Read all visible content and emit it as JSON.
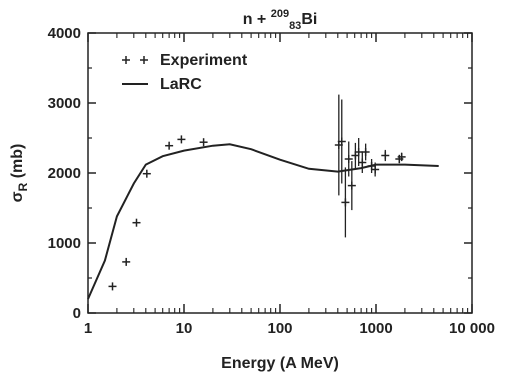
{
  "chart_data": {
    "type": "scatter",
    "title": {
      "prefix": "n + ",
      "mass_number": "209",
      "atomic_number": "83",
      "element": "Bi"
    },
    "xlabel": "Energy (A MeV)",
    "ylabel": {
      "symbol": "σ",
      "subscript": "R",
      "unit": " (mb)"
    },
    "x_scale": "log",
    "xlim": [
      1,
      10000
    ],
    "ylim": [
      0,
      4000
    ],
    "x_ticks": [
      {
        "value": 1,
        "label": "1"
      },
      {
        "value": 10,
        "label": "10"
      },
      {
        "value": 100,
        "label": "100"
      },
      {
        "value": 1000,
        "label": "1000"
      },
      {
        "value": 10000,
        "label": "10 000"
      }
    ],
    "y_ticks": [
      {
        "value": 0,
        "label": "0"
      },
      {
        "value": 1000,
        "label": "1000"
      },
      {
        "value": 2000,
        "label": "2000"
      },
      {
        "value": 3000,
        "label": "3000"
      },
      {
        "value": 4000,
        "label": "4000"
      }
    ],
    "grid": false,
    "legend_position": "top-left",
    "series": [
      {
        "name": "Experiment",
        "kind": "points",
        "marker": "plus",
        "points": [
          {
            "x": 1.8,
            "y": 380
          },
          {
            "x": 2.5,
            "y": 730
          },
          {
            "x": 3.2,
            "y": 1290
          },
          {
            "x": 4.1,
            "y": 1990
          },
          {
            "x": 7.0,
            "y": 2390
          },
          {
            "x": 9.4,
            "y": 2480
          },
          {
            "x": 16.0,
            "y": 2440
          },
          {
            "x": 410,
            "y": 2400,
            "yerr": 720
          },
          {
            "x": 440,
            "y": 2450,
            "yerr": 600
          },
          {
            "x": 480,
            "y": 1580,
            "yerr": 500
          },
          {
            "x": 520,
            "y": 2200,
            "yerr": 250
          },
          {
            "x": 560,
            "y": 1820,
            "yerr": 350
          },
          {
            "x": 610,
            "y": 2250,
            "yerr": 180
          },
          {
            "x": 660,
            "y": 2300,
            "yerr": 200
          },
          {
            "x": 720,
            "y": 2150,
            "yerr": 150
          },
          {
            "x": 780,
            "y": 2300,
            "yerr": 120
          },
          {
            "x": 900,
            "y": 2100,
            "yerr": 100
          },
          {
            "x": 980,
            "y": 2050,
            "yerr": 100
          },
          {
            "x": 1250,
            "y": 2250,
            "yerr": 80
          },
          {
            "x": 1750,
            "y": 2200,
            "yerr": 60
          },
          {
            "x": 1850,
            "y": 2230,
            "yerr": 60
          }
        ]
      },
      {
        "name": "LaRC",
        "kind": "line",
        "points": [
          {
            "x": 1.0,
            "y": 200
          },
          {
            "x": 1.5,
            "y": 750
          },
          {
            "x": 2.0,
            "y": 1380
          },
          {
            "x": 3.0,
            "y": 1850
          },
          {
            "x": 4.0,
            "y": 2120
          },
          {
            "x": 6.0,
            "y": 2240
          },
          {
            "x": 10,
            "y": 2320
          },
          {
            "x": 20,
            "y": 2390
          },
          {
            "x": 30,
            "y": 2410
          },
          {
            "x": 50,
            "y": 2340
          },
          {
            "x": 100,
            "y": 2190
          },
          {
            "x": 200,
            "y": 2060
          },
          {
            "x": 400,
            "y": 2020
          },
          {
            "x": 700,
            "y": 2070
          },
          {
            "x": 1000,
            "y": 2120
          },
          {
            "x": 2000,
            "y": 2120
          },
          {
            "x": 4500,
            "y": 2100
          }
        ]
      }
    ]
  }
}
